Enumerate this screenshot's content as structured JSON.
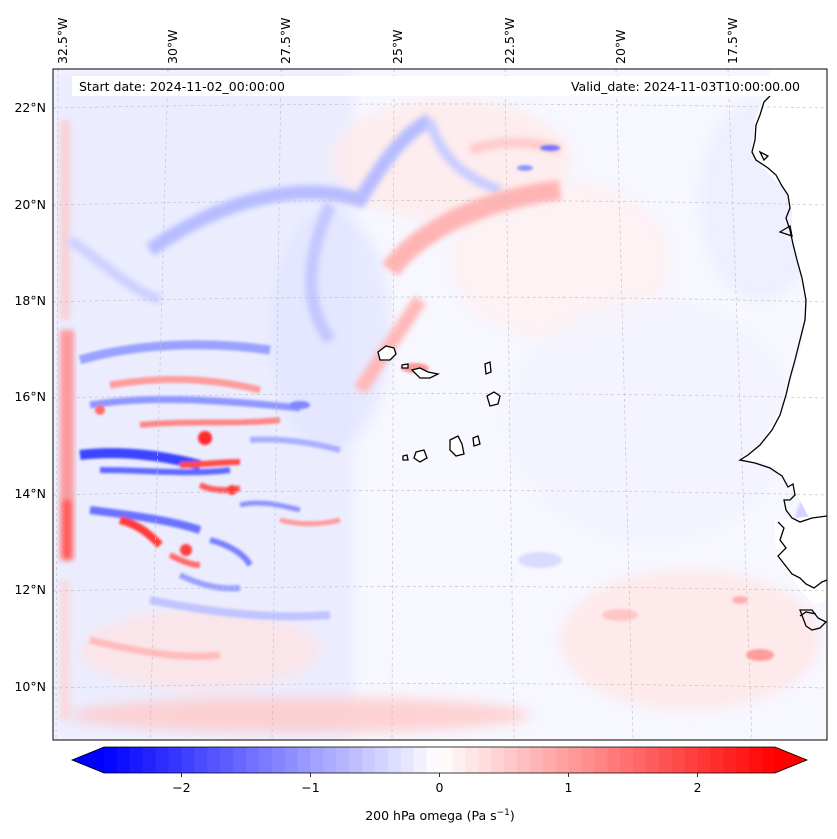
{
  "header": {
    "start_date": "Start date: 2024-11-02_00:00:00",
    "valid_date": "Valid_date: 2024-11-03T10:00:00.00"
  },
  "axes": {
    "lon_labels": [
      "32.5°W",
      "30°W",
      "27.5°W",
      "25°W",
      "22.5°W",
      "20°W",
      "17.5°W"
    ],
    "lat_labels": [
      "22°N",
      "20°N",
      "18°N",
      "16°N",
      "14°N",
      "12°N",
      "10°N"
    ]
  },
  "colorbar": {
    "label_text": "200 hPa omega (Pa s",
    "label_exponent": "−1",
    "label_close": ")",
    "ticks": [
      "−2",
      "−1",
      "0",
      "1",
      "2"
    ],
    "range": [
      -2.6,
      2.6
    ],
    "extend": "both",
    "low_color": "#0000ff",
    "mid_color": "#ffffff",
    "high_color": "#ff0000"
  },
  "colors": {
    "land": "#ffffff",
    "coastline": "#000000",
    "ocean_background": "#f7f7ff",
    "gridline": "#c8c0c0"
  }
}
